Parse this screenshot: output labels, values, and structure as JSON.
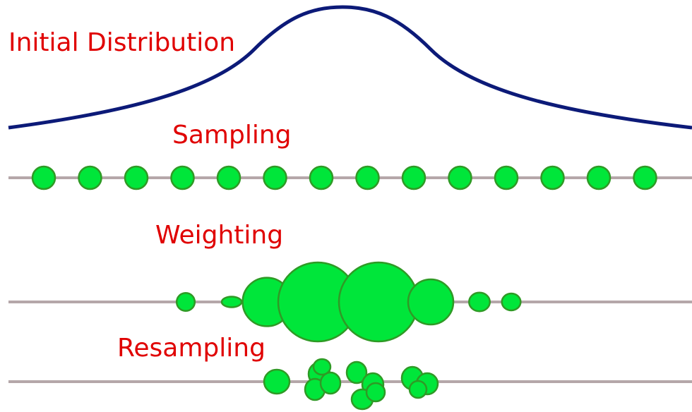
{
  "labels": {
    "initial": "Initial Distribution",
    "sampling": "Sampling",
    "weighting": "Weighting",
    "resampling": "Resampling"
  },
  "colors": {
    "label": "#e00000",
    "curve": "#0c1a78",
    "particle_fill": "#00e63a",
    "particle_stroke": "#2f9a25",
    "bar": "#b5a7a9"
  },
  "sampling": {
    "count": 14
  },
  "weighting": {
    "weights": [
      0.1,
      0.16,
      0.55,
      1.0,
      1.0,
      0.5,
      0.14,
      0.11
    ]
  },
  "resampling": {
    "groups": [
      1,
      4,
      4,
      3
    ]
  }
}
